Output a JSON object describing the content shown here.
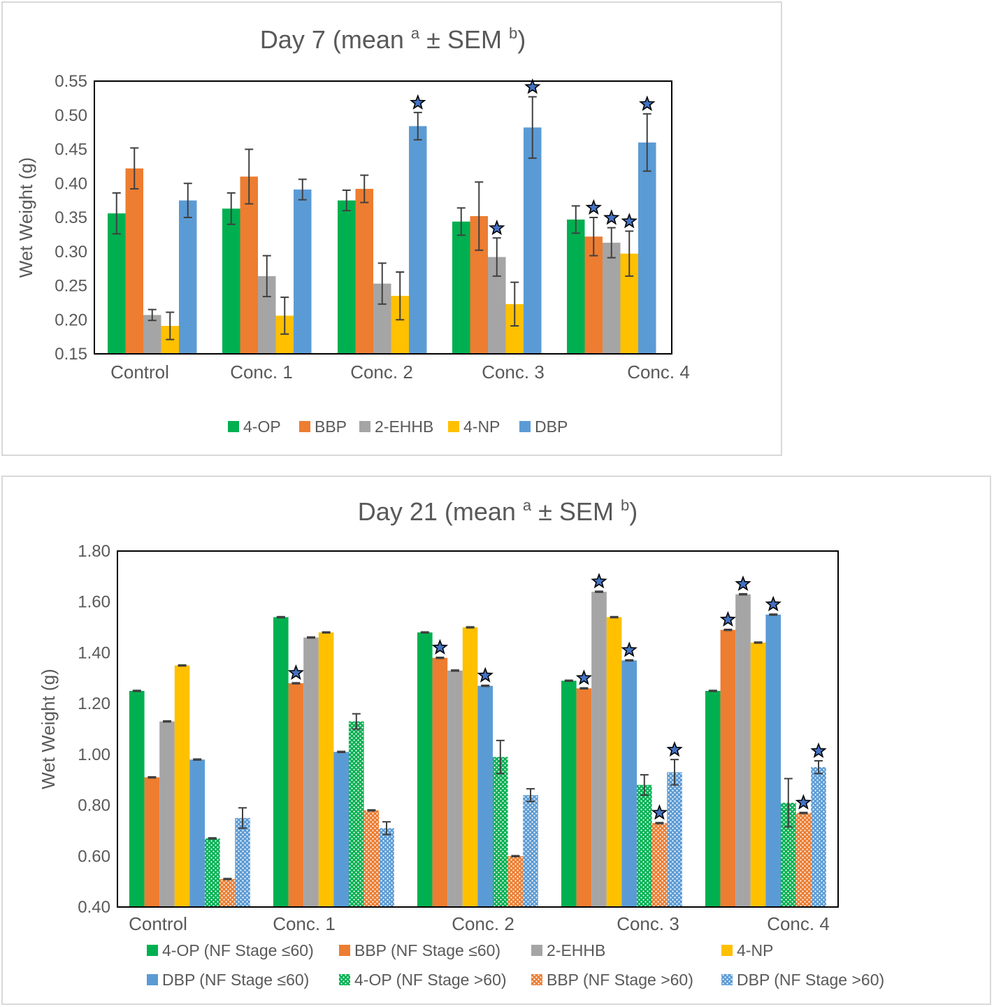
{
  "chart_data": [
    {
      "type": "bar",
      "title": "Day 7 (mean a ± SEM b)",
      "title_parts": {
        "main1": "Day 7 (mean ",
        "sup1": "a",
        "main2": " ± SEM ",
        "sup2": "b",
        "main3": ")"
      },
      "ylabel": "Wet Weight (g)",
      "xlabel": "",
      "ylim": [
        0.15,
        0.55
      ],
      "yticks": [
        "0.15",
        "0.20",
        "0.25",
        "0.30",
        "0.35",
        "0.40",
        "0.45",
        "0.50",
        "0.55"
      ],
      "categories": [
        "Control",
        "Conc. 1",
        "Conc. 2",
        "Conc. 3",
        "Conc. 4"
      ],
      "legend_position": "bottom",
      "grid": false,
      "series": [
        {
          "name": "4-OP",
          "color": "#00b050",
          "pattern": "solid",
          "values": [
            0.356,
            0.363,
            0.375,
            0.344,
            0.347
          ],
          "errors": [
            0.03,
            0.023,
            0.015,
            0.02,
            0.02
          ],
          "significant": [
            false,
            false,
            false,
            false,
            false
          ]
        },
        {
          "name": "BBP",
          "color": "#ed7d31",
          "pattern": "solid",
          "values": [
            0.422,
            0.41,
            0.392,
            0.352,
            0.322
          ],
          "errors": [
            0.03,
            0.04,
            0.02,
            0.05,
            0.028
          ],
          "significant": [
            false,
            false,
            false,
            false,
            true
          ]
        },
        {
          "name": "2-EHHB",
          "color": "#a5a5a5",
          "pattern": "solid",
          "values": [
            0.207,
            0.264,
            0.253,
            0.292,
            0.313
          ],
          "errors": [
            0.008,
            0.03,
            0.03,
            0.028,
            0.022
          ],
          "significant": [
            false,
            false,
            false,
            true,
            true
          ]
        },
        {
          "name": "4-NP",
          "color": "#ffc000",
          "pattern": "solid",
          "values": [
            0.191,
            0.206,
            0.235,
            0.223,
            0.297
          ],
          "errors": [
            0.02,
            0.027,
            0.035,
            0.032,
            0.033
          ],
          "significant": [
            false,
            false,
            false,
            false,
            true
          ]
        },
        {
          "name": "DBP",
          "color": "#5b9bd5",
          "pattern": "solid",
          "values": [
            0.375,
            0.391,
            0.484,
            0.482,
            0.46
          ],
          "errors": [
            0.025,
            0.015,
            0.02,
            0.045,
            0.042
          ],
          "significant": [
            false,
            false,
            true,
            true,
            true
          ]
        }
      ]
    },
    {
      "type": "bar",
      "title": "Day 21 (mean a ± SEM b)",
      "title_parts": {
        "main1": "Day 21 (mean ",
        "sup1": "a",
        "main2": " ± SEM ",
        "sup2": "b",
        "main3": ")"
      },
      "ylabel": "Wet Weight (g)",
      "xlabel": "",
      "ylim": [
        0.4,
        1.8
      ],
      "yticks": [
        "0.40",
        "0.60",
        "0.80",
        "1.00",
        "1.20",
        "1.40",
        "1.60",
        "1.80"
      ],
      "categories": [
        "Control",
        "Conc. 1",
        "Conc. 2",
        "Conc. 3",
        "Conc. 4"
      ],
      "legend_position": "bottom",
      "grid": false,
      "series": [
        {
          "name": "4-OP (NF Stage ≤60)",
          "color": "#00b050",
          "pattern": "solid",
          "values": [
            1.25,
            1.54,
            1.48,
            1.29,
            1.25
          ],
          "errors": [
            0.002,
            0.002,
            0.002,
            0.002,
            0.002
          ],
          "significant": [
            false,
            false,
            false,
            false,
            false
          ]
        },
        {
          "name": "BBP (NF Stage ≤60)",
          "color": "#ed7d31",
          "pattern": "solid",
          "values": [
            0.91,
            1.28,
            1.38,
            1.26,
            1.49
          ],
          "errors": [
            0.002,
            0.002,
            0.002,
            0.002,
            0.002
          ],
          "significant": [
            false,
            true,
            true,
            true,
            true
          ]
        },
        {
          "name": "2-EHHB",
          "color": "#a5a5a5",
          "pattern": "solid",
          "values": [
            1.13,
            1.46,
            1.33,
            1.64,
            1.63
          ],
          "errors": [
            0.002,
            0.002,
            0.002,
            0.002,
            0.002
          ],
          "significant": [
            false,
            false,
            false,
            true,
            true
          ]
        },
        {
          "name": "4-NP",
          "color": "#ffc000",
          "pattern": "solid",
          "values": [
            1.35,
            1.48,
            1.5,
            1.54,
            1.44
          ],
          "errors": [
            0.002,
            0.002,
            0.002,
            0.002,
            0.002
          ],
          "significant": [
            false,
            false,
            false,
            false,
            false
          ]
        },
        {
          "name": "DBP (NF Stage ≤60)",
          "color": "#5b9bd5",
          "pattern": "solid",
          "values": [
            0.98,
            1.01,
            1.27,
            1.37,
            1.55
          ],
          "errors": [
            0.002,
            0.002,
            0.002,
            0.002,
            0.002
          ],
          "significant": [
            false,
            false,
            true,
            true,
            true
          ]
        },
        {
          "name": "4-OP (NF Stage >60)",
          "color": "#00b050",
          "pattern": "dots",
          "values": [
            0.67,
            1.13,
            0.99,
            0.88,
            0.81
          ],
          "errors": [
            0.002,
            0.03,
            0.065,
            0.04,
            0.095
          ],
          "significant": [
            false,
            false,
            false,
            false,
            false
          ]
        },
        {
          "name": "BBP (NF Stage >60)",
          "color": "#ed7d31",
          "pattern": "dots",
          "values": [
            0.51,
            0.78,
            0.6,
            0.73,
            0.77
          ],
          "errors": [
            0.002,
            0.002,
            0.002,
            0.002,
            0.002
          ],
          "significant": [
            false,
            false,
            false,
            true,
            true
          ]
        },
        {
          "name": "DBP (NF Stage >60)",
          "color": "#5b9bd5",
          "pattern": "dots",
          "values": [
            0.75,
            0.71,
            0.84,
            0.93,
            0.95
          ],
          "errors": [
            0.04,
            0.025,
            0.025,
            0.05,
            0.025
          ],
          "significant": [
            false,
            false,
            false,
            true,
            true
          ]
        }
      ]
    }
  ]
}
